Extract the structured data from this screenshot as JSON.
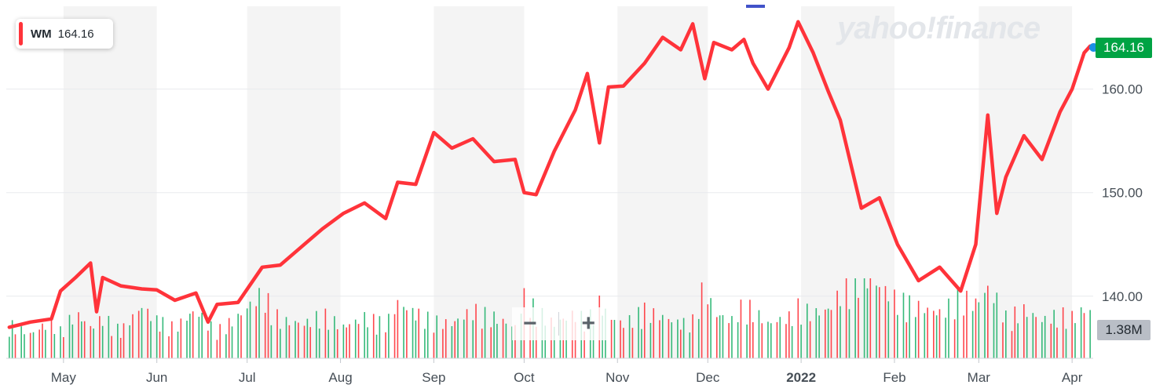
{
  "legend": {
    "symbol": "WM",
    "value": "164.16"
  },
  "watermark": "yahoo!finance",
  "price_badge": "164.16",
  "volume_badge": "1.38M",
  "zoom": {
    "minus": "−",
    "plus": "+"
  },
  "colors": {
    "line": "#ff333a",
    "up_volume": "#20b26c",
    "down_volume": "#ff333a",
    "band": "#f4f4f4",
    "price_badge": "#00a344"
  },
  "chart_data": {
    "type": "line",
    "series": [
      {
        "name": "WM",
        "x": [
          "2021-04-13",
          "2021-04-20",
          "2021-04-27",
          "2021-04-30",
          "2021-05-05",
          "2021-05-10",
          "2021-05-12",
          "2021-05-14",
          "2021-05-20",
          "2021-05-27",
          "2021-06-01",
          "2021-06-07",
          "2021-06-14",
          "2021-06-18",
          "2021-06-21",
          "2021-06-28",
          "2021-07-06",
          "2021-07-12",
          "2021-07-20",
          "2021-07-26",
          "2021-08-02",
          "2021-08-09",
          "2021-08-16",
          "2021-08-20",
          "2021-08-26",
          "2021-09-01",
          "2021-09-07",
          "2021-09-14",
          "2021-09-21",
          "2021-09-28",
          "2021-10-01",
          "2021-10-05",
          "2021-10-11",
          "2021-10-18",
          "2021-10-22",
          "2021-10-26",
          "2021-10-29",
          "2021-11-03",
          "2021-11-10",
          "2021-11-16",
          "2021-11-22",
          "2021-11-26",
          "2021-11-30",
          "2021-12-03",
          "2021-12-09",
          "2021-12-13",
          "2021-12-16",
          "2021-12-21",
          "2021-12-28",
          "2021-12-31",
          "2022-01-05",
          "2022-01-10",
          "2022-01-14",
          "2022-01-21",
          "2022-01-27",
          "2022-02-02",
          "2022-02-09",
          "2022-02-16",
          "2022-02-23",
          "2022-02-28",
          "2022-03-04",
          "2022-03-07",
          "2022-03-10",
          "2022-03-16",
          "2022-03-22",
          "2022-03-28",
          "2022-04-01",
          "2022-04-05",
          "2022-04-07"
        ],
        "values": [
          137.0,
          137.5,
          137.8,
          140.5,
          141.8,
          143.2,
          138.5,
          141.8,
          141.0,
          140.7,
          140.6,
          139.6,
          140.3,
          137.5,
          139.2,
          139.4,
          142.8,
          143.0,
          145.0,
          146.5,
          148.0,
          149.0,
          147.5,
          151.0,
          150.8,
          155.8,
          154.3,
          155.2,
          153.0,
          153.2,
          150.0,
          149.8,
          154.0,
          158.0,
          161.5,
          154.8,
          160.2,
          160.3,
          162.5,
          165.0,
          163.8,
          166.3,
          161.0,
          164.5,
          163.8,
          164.8,
          162.5,
          160.0,
          164.0,
          166.5,
          163.5,
          159.8,
          157.0,
          148.5,
          149.5,
          145.0,
          141.5,
          142.8,
          140.5,
          145.0,
          157.5,
          148.0,
          151.5,
          155.5,
          153.2,
          157.8,
          160.0,
          163.5,
          164.16
        ]
      }
    ],
    "xlabel": "",
    "ylabel": "",
    "x_ticks": [
      "May",
      "Jun",
      "Jul",
      "Aug",
      "Sep",
      "Oct",
      "Nov",
      "Dec",
      "2022",
      "Feb",
      "Mar",
      "Apr"
    ],
    "y_ticks": [
      "140.00",
      "150.00",
      "160.00"
    ],
    "ylim": [
      134,
      168
    ],
    "grid": true,
    "legend": "top-left",
    "volume": {
      "volume_values": [
        1.0,
        0.7,
        1.1,
        0.8,
        1.3,
        0.9,
        1.0,
        1.2,
        0.8,
        1.5,
        1.1,
        0.9,
        1.4,
        1.0,
        0.8,
        1.2,
        1.9,
        1.1,
        1.0,
        1.3,
        0.9,
        1.2,
        1.0,
        1.6,
        1.3,
        1.1,
        1.0,
        1.4,
        1.2,
        0.9,
        1.8,
        1.4,
        1.0,
        1.3,
        1.1,
        1.6,
        1.2,
        1.0,
        1.4,
        1.2,
        1.0,
        1.1,
        2.2,
        1.3,
        1.1,
        1.6,
        1.4,
        1.0,
        1.2,
        1.5,
        1.3,
        1.4,
        1.9,
        2.5,
        2.1,
        1.7,
        1.5,
        1.3,
        1.8,
        1.6,
        2.0,
        1.7,
        1.2,
        1.4,
        1.1,
        1.3,
        1.2,
        1.4,
        1.38
      ],
      "badge": "1.38M"
    }
  }
}
